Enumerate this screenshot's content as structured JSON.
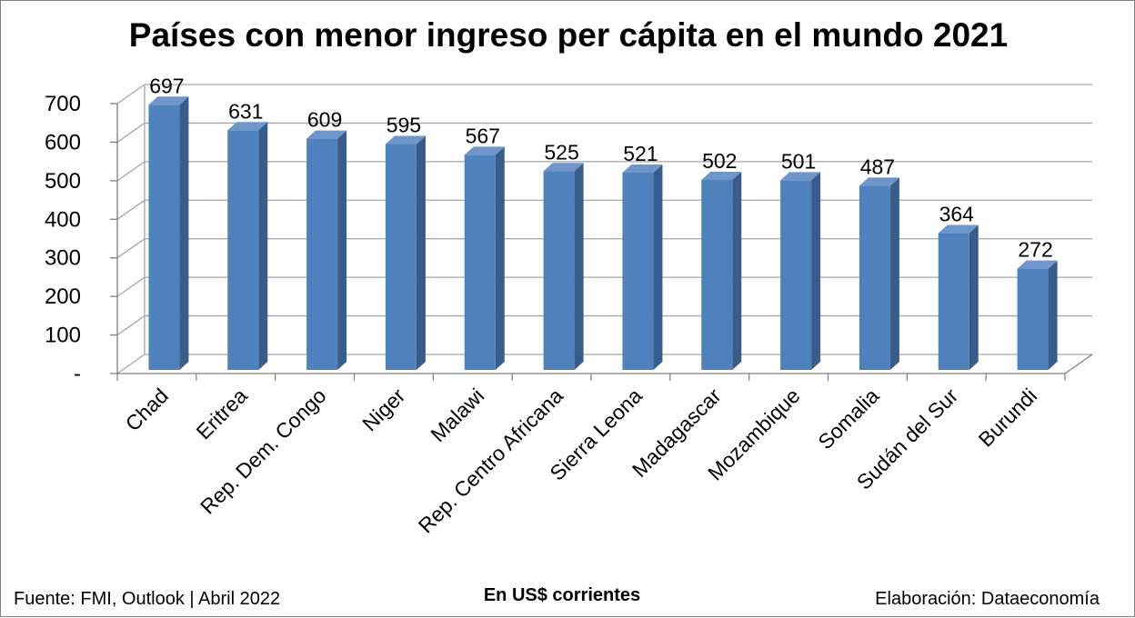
{
  "chart_data": {
    "type": "bar",
    "title": "Países con menor ingreso per cápita en el mundo 2021",
    "categories": [
      "Chad",
      "Eritrea",
      "Rep. Dem. Congo",
      "Niger",
      "Malawi",
      "Rep. Centro Africana",
      "Sierra Leona",
      "Madagascar",
      "Mozambique",
      "Somalia",
      "Sudán del Sur",
      "Burundi"
    ],
    "values": [
      697,
      631,
      609,
      595,
      567,
      525,
      521,
      502,
      501,
      487,
      364,
      272
    ],
    "ylim": [
      0,
      700
    ],
    "yticks": [
      0,
      100,
      200,
      300,
      400,
      500,
      600,
      700
    ],
    "ytick_labels": [
      "-",
      "100",
      "200",
      "300",
      "400",
      "500",
      "600",
      "700"
    ],
    "unit_label": "En US$ corrientes",
    "grid": true,
    "style": "3d-column",
    "colors": {
      "bar_front": "#4f81bd",
      "bar_side": "#385d8a",
      "bar_top": "#6f95c9",
      "grid": "#a6a6a6"
    }
  },
  "footer": {
    "source": "Fuente: FMI, Outlook | Abril 2022",
    "unit": "En US$ corrientes",
    "credit": "Elaboración: Dataeconomía"
  }
}
